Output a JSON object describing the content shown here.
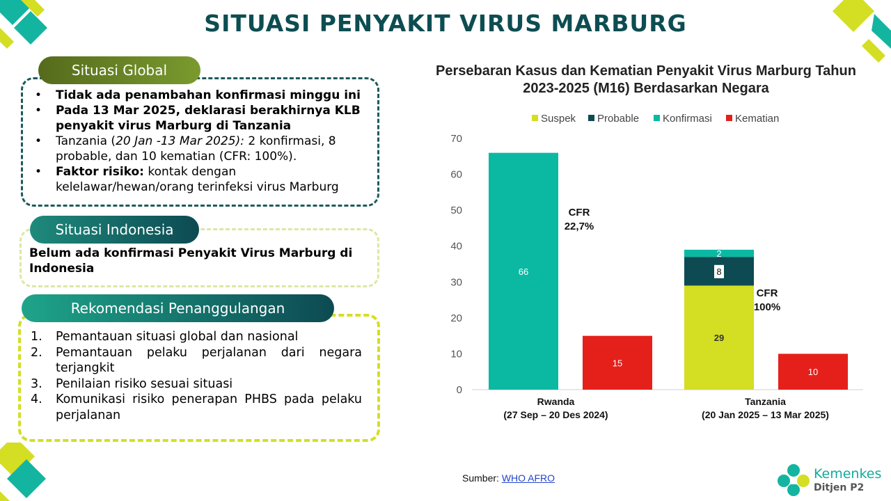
{
  "page": {
    "title": "SITUASI PENYAKIT VIRUS MARBURG"
  },
  "global": {
    "heading": "Situasi Global",
    "items": [
      {
        "bold": "Tidak ada penambahan konfirmasi minggu ini",
        "normal": ""
      },
      {
        "bold": "Pada 13 Mar 2025, deklarasi berakhirnya KLB penyakit virus Marburg di Tanzania",
        "normal": ""
      },
      {
        "bold": "",
        "pre": "Tanzania (",
        "italic": "20 Jan -13 Mar 2025):",
        "normal": " 2 konfirmasi, 8 probable, dan 10 kematian (CFR: 100%)."
      },
      {
        "bold": "Faktor risiko:",
        "normal": " kontak dengan kelelawar/hewan/orang terinfeksi virus Marburg"
      }
    ]
  },
  "indonesia": {
    "heading": "Situasi Indonesia",
    "text": "Belum ada konfirmasi Penyakit Virus Marburg di Indonesia"
  },
  "rekomendasi": {
    "heading": "Rekomendasi Penanggulangan",
    "items": [
      {
        "num": "1.",
        "text": "Pemantauan situasi global dan nasional"
      },
      {
        "num": "2.",
        "text": "Pemantauan pelaku perjalanan dari negara terjangkit"
      },
      {
        "num": "3.",
        "text": "Penilaian risiko sesuai situasi"
      },
      {
        "num": "4.",
        "text": "Komunikasi risiko penerapan PHBS pada pelaku perjalanan"
      }
    ]
  },
  "chart_data": {
    "type": "bar",
    "title": "Persebaran Kasus dan Kematian Penyakit Virus Marburg Tahun 2023-2025 (M16) Berdasarkan Negara",
    "legend_position": "top",
    "series": [
      {
        "name": "Suspek",
        "color": "#d4de23"
      },
      {
        "name": "Probable",
        "color": "#0d4a52"
      },
      {
        "name": "Konfirmasi",
        "color": "#0bb9a3"
      },
      {
        "name": "Kematian",
        "color": "#e5201b"
      }
    ],
    "groups": [
      {
        "label_line1": "Rwanda",
        "label_line2": "(27 Sep – 20 Des 2024)",
        "cases": {
          "Suspek": 0,
          "Probable": 0,
          "Konfirmasi": 66
        },
        "deaths": 15,
        "cfr_label": "CFR",
        "cfr_value": "22,7%"
      },
      {
        "label_line1": "Tanzania",
        "label_line2": "(20 Jan 2025  – 13 Mar 2025)",
        "cases": {
          "Suspek": 29,
          "Probable": 8,
          "Konfirmasi": 2
        },
        "deaths": 10,
        "cfr_label": "CFR",
        "cfr_value": "100%"
      }
    ],
    "ylim": [
      0,
      70
    ],
    "yticks": [
      0,
      10,
      20,
      30,
      40,
      50,
      60,
      70
    ],
    "grid": false
  },
  "footer": {
    "source_label": "Sumber:",
    "source_link": "WHO AFRO",
    "logo_name": "Kemenkes",
    "logo_sub": "Ditjen P2"
  }
}
